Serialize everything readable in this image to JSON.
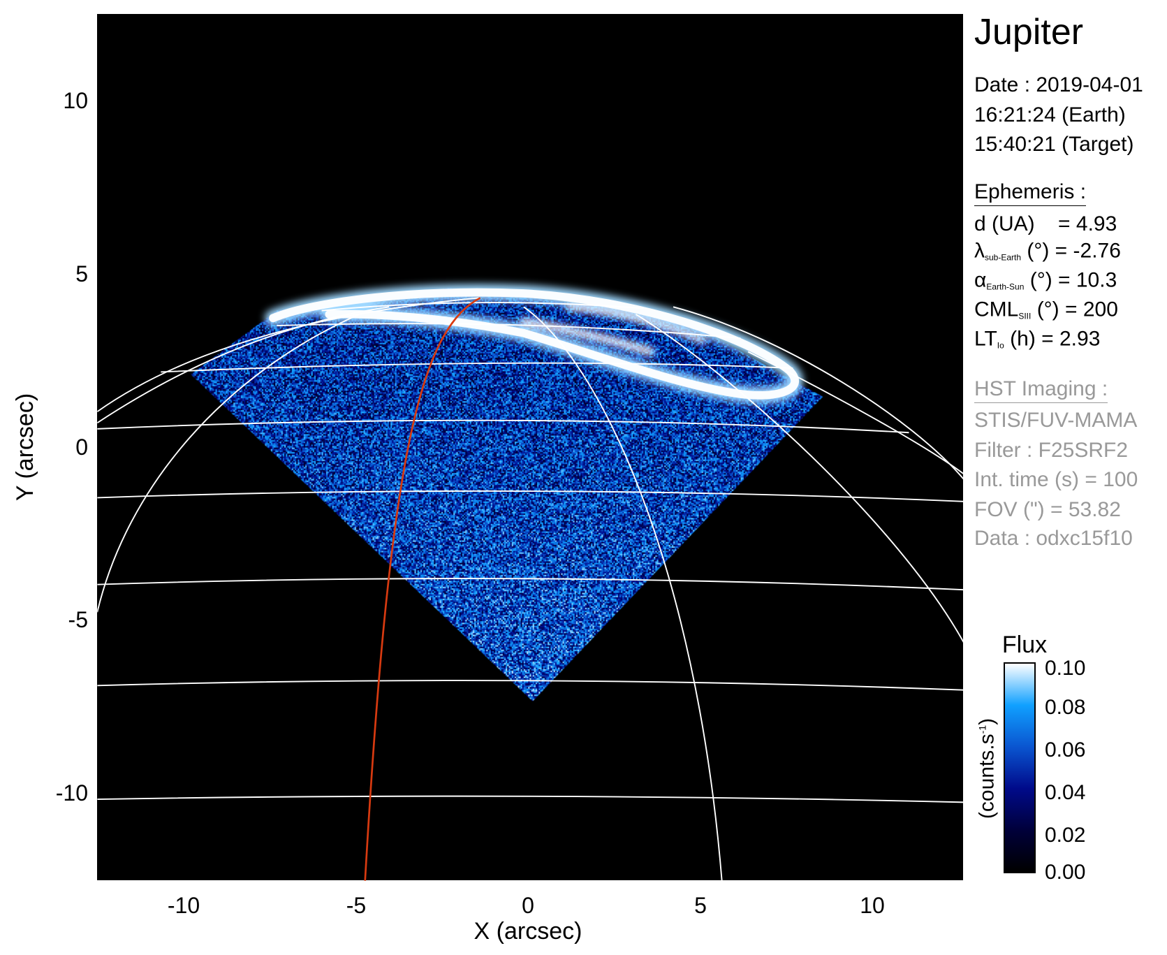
{
  "chart_data": {
    "type": "heatmap",
    "title": "Jupiter",
    "xlabel": "X (arcsec)",
    "ylabel": "Y (arcsec)",
    "xlim": [
      -12.5,
      12.5
    ],
    "ylim": [
      -12.5,
      12.5
    ],
    "xticks": [
      "-10",
      "-5",
      "0",
      "5",
      "10"
    ],
    "yticks": [
      "10",
      "5",
      "0",
      "-5",
      "-10"
    ],
    "grid": "planetocentric latitude/longitude grid (white)",
    "highlight_line_color": "#d83a10",
    "colorbar": {
      "title": "Flux",
      "label": "(counts.s",
      "label_sup": "-1",
      "label_end": ")",
      "range": [
        0.0,
        0.1
      ],
      "ticks": [
        "0.10",
        "0.08",
        "0.06",
        "0.04",
        "0.02",
        "0.00"
      ],
      "colormap": [
        "#000000",
        "#00003a",
        "#000a8a",
        "#0a55d0",
        "#10a0ff",
        "#ffffff"
      ]
    }
  },
  "info": {
    "target": "Jupiter",
    "date": "Date : 2019-04-01",
    "time_earth": "16:21:24 (Earth)",
    "time_target": "15:40:21 (Target)",
    "ephemeris_title": "Ephemeris :",
    "ephemeris": [
      {
        "sym": "d (UA)",
        "sub": "",
        "rest": "    = 4.93"
      },
      {
        "sym": "λ",
        "sub": "sub-Earth",
        "rest": " (°) = -2.76"
      },
      {
        "sym": "α",
        "sub": "Earth-Sun",
        "rest": " (°) = 10.3"
      },
      {
        "sym": "CML",
        "sub": "SIII",
        "rest": " (°) = 200"
      },
      {
        "sym": "LT",
        "sub": "Io",
        "rest": " (h) = 2.93"
      }
    ],
    "hst_title": "HST Imaging :",
    "hst": [
      "STIS/FUV-MAMA",
      "Filter : F25SRF2",
      "Int. time (s) = 100",
      "FOV (\") = 53.82",
      "Data : odxc15f10"
    ]
  }
}
